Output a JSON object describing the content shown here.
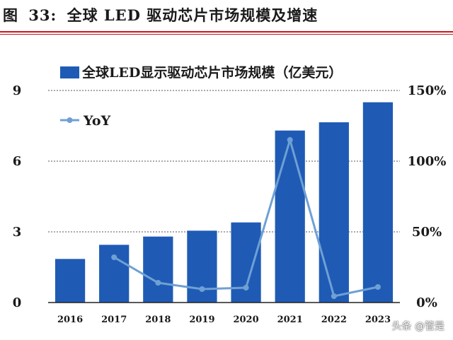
{
  "figure": {
    "label": "图",
    "number": "33:",
    "title": "全球 LED 驱动芯片市场规模及增速"
  },
  "watermark": "头条 @管是",
  "colors": {
    "bar": "#1f5bb5",
    "line": "#6fa0d4",
    "rule": "#c8161d"
  },
  "chart_data": {
    "type": "bar",
    "categories": [
      "2016",
      "2017",
      "2018",
      "2019",
      "2020",
      "2021",
      "2022",
      "2023"
    ],
    "series": [
      {
        "name": "全球LED显示驱动芯片市场规模（亿美元）",
        "type": "bar",
        "axis": "left",
        "values": [
          1.85,
          2.45,
          2.8,
          3.05,
          3.4,
          7.3,
          7.65,
          8.5
        ]
      },
      {
        "name": "YoY",
        "type": "line",
        "axis": "right",
        "values": [
          null,
          32,
          14,
          9.5,
          10.5,
          115,
          4.5,
          11
        ]
      }
    ],
    "y_left": {
      "ticks": [
        "0",
        "3",
        "6",
        "9"
      ],
      "range": [
        0,
        9
      ]
    },
    "y_right": {
      "ticks": [
        "0%",
        "50%",
        "100%",
        "150%"
      ],
      "range": [
        0,
        150
      ]
    },
    "grid": "horizontal-dashed",
    "legend": "top-left"
  }
}
